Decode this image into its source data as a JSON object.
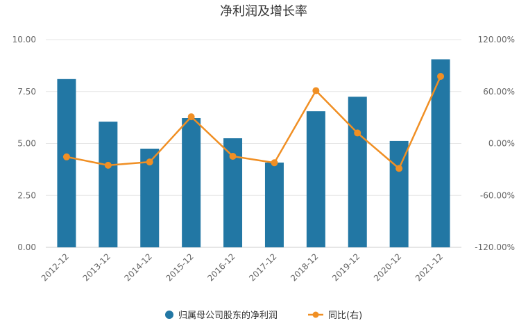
{
  "chart_data": {
    "type": "bar+line",
    "title": "净利润及增长率",
    "categories": [
      "2012-12",
      "2013-12",
      "2014-12",
      "2015-12",
      "2016-12",
      "2017-12",
      "2018-12",
      "2019-12",
      "2020-12",
      "2021-12"
    ],
    "series": [
      {
        "name": "归属母公司股东的净利润",
        "type": "bar",
        "axis": "left",
        "color": "#2277a4",
        "values": [
          8.1,
          6.05,
          4.75,
          6.22,
          5.25,
          4.08,
          6.55,
          7.25,
          5.12,
          9.05
        ]
      },
      {
        "name": "同比(右)",
        "type": "line",
        "axis": "right",
        "color": "#f08f24",
        "values": [
          -15.5,
          -25.2,
          -21.4,
          30.8,
          -14.8,
          -22.3,
          61.0,
          12.1,
          -28.9,
          77.5
        ]
      }
    ],
    "left_axis": {
      "ylim": [
        0,
        10
      ],
      "ticks": [
        "10.00",
        "7.50",
        "5.00",
        "2.50",
        "0.00"
      ],
      "tick_values": [
        10,
        7.5,
        5,
        2.5,
        0
      ]
    },
    "right_axis": {
      "ylim": [
        -120,
        120
      ],
      "ticks": [
        "120.00%",
        "60.00%",
        "0.00%",
        "-60.00%",
        "-120.00%"
      ],
      "tick_values": [
        120,
        60,
        0,
        -60,
        -120
      ]
    },
    "legend": {
      "position": "bottom",
      "items": [
        "归属母公司股东的净利润",
        "同比(右)"
      ]
    },
    "grid": true
  }
}
